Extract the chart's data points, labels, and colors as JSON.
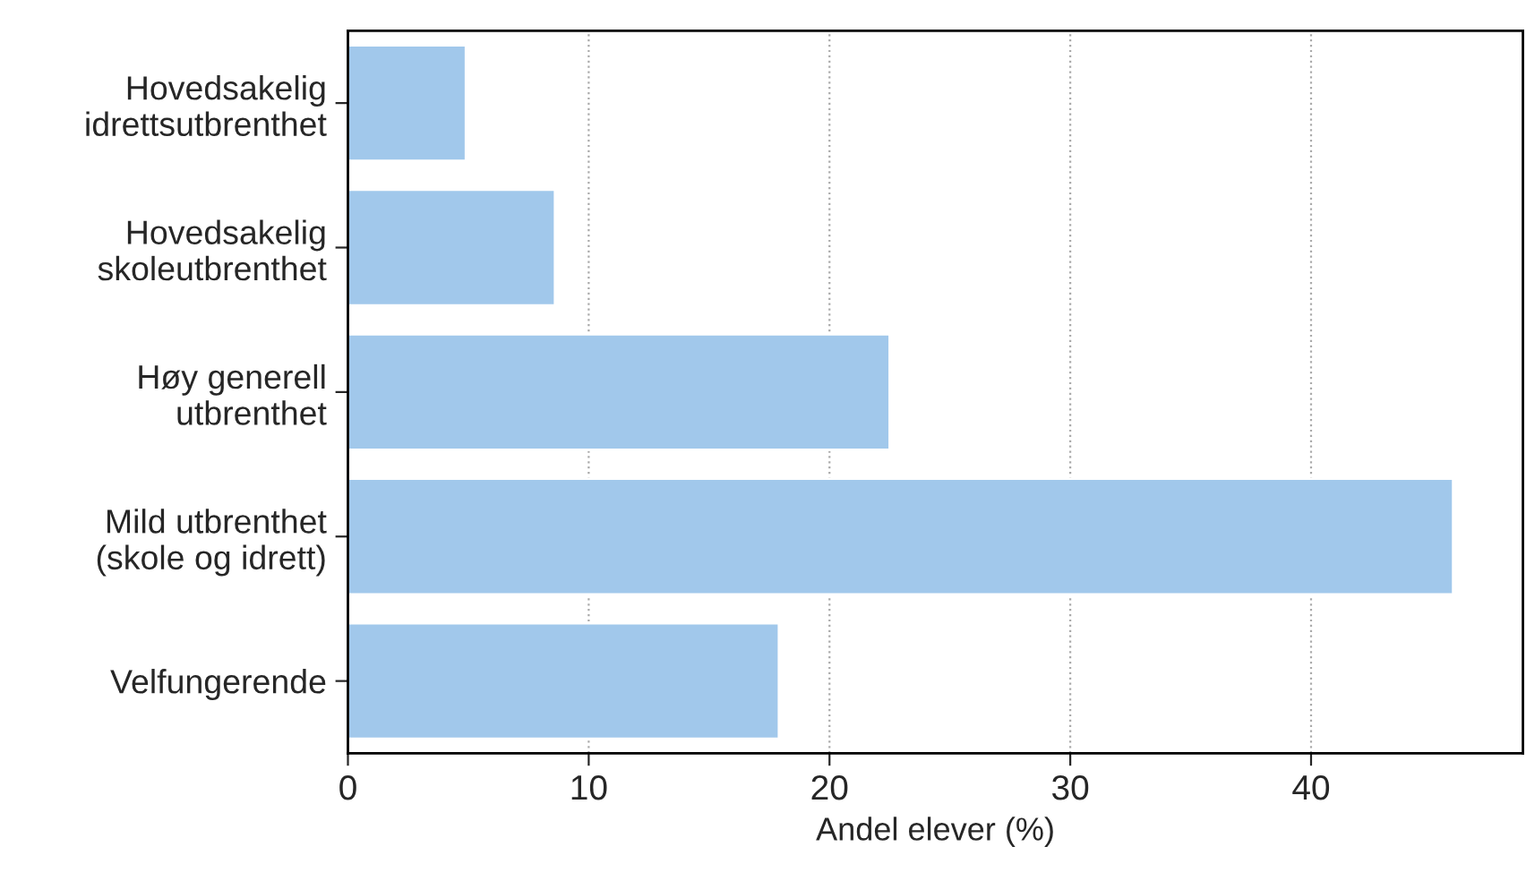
{
  "chart_data": {
    "type": "bar",
    "orientation": "horizontal",
    "xlabel": "Andel elever (%)",
    "categories": [
      "Hovedsakelig\nidrettsutbrenthet",
      "Hovedsakelig\nskoleutbrenthet",
      "Høy generell\nutbrenthet",
      "Mild utbrenthet\n(skole og idrett)",
      "Velfungerende"
    ],
    "values": [
      4.9,
      8.6,
      22.5,
      45.9,
      17.9
    ],
    "color": "#a1c8eb",
    "xlim": [
      0,
      48.8
    ],
    "xticks": [
      0,
      10,
      20,
      30,
      40
    ],
    "grid": "x"
  }
}
